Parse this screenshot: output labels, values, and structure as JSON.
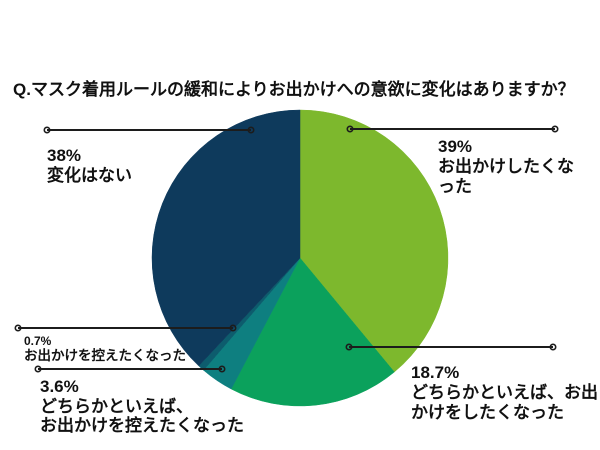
{
  "title": "Q.マスク着用ルールの緩和によりお出かけへの意欲に変化はありますか？",
  "styles": {
    "background": "#ffffff",
    "text_color": "#111111",
    "leader_color": "#1c1c1c"
  },
  "chart_data": {
    "type": "pie",
    "title": "Q.マスク着用ルールの緩和によりお出かけへの意欲に変化はありますか？",
    "start_angle_deg": 0,
    "direction": "clockwise",
    "unit": "%",
    "slices": [
      {
        "label": "お出かけしたくなった",
        "value": 39,
        "display_pct": "39%",
        "color": "#7db82d"
      },
      {
        "label": "どちらかといえば、お出かけをしたくなった",
        "value": 18.7,
        "display_pct": "18.7%",
        "color": "#0ba15c"
      },
      {
        "label": "どちらかといえば、お出かけを控えたくなった",
        "value": 3.6,
        "display_pct": "3.6%",
        "color": "#0e7f80"
      },
      {
        "label": "お出かけを控えたくなった",
        "value": 0.7,
        "display_pct": "0.7%",
        "color": "#0d5c6d"
      },
      {
        "label": "変化はない",
        "value": 38,
        "display_pct": "38%",
        "color": "#0e3a5c"
      }
    ]
  },
  "callouts": {
    "top_right": {
      "pct": "39%",
      "line1": "お出かけしたくな",
      "line2": "った"
    },
    "top_left": {
      "pct": "38%",
      "line1": "変化はない"
    },
    "bottom_right": {
      "pct": "18.7%",
      "line1": "どちらかといえば、お出",
      "line2": "かけをしたくなった"
    },
    "mid_left": {
      "pct": "0.7%",
      "line1": "お出かけを控えたくなった"
    },
    "bottom_left": {
      "pct": "3.6%",
      "line1": "どちらかといえば、",
      "line2": "お出かけを控えたくなった"
    }
  }
}
